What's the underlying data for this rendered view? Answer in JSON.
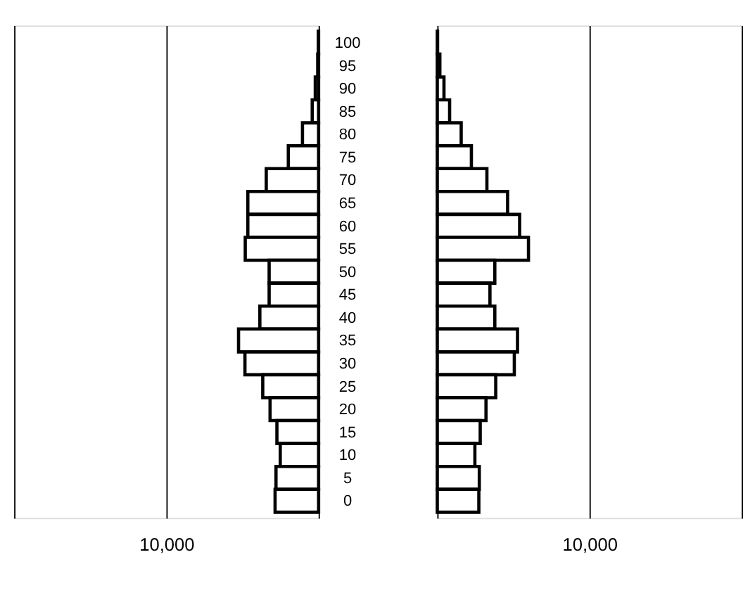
{
  "chart_data": [
    {
      "type": "bar",
      "orientation": "horizontal",
      "categories": [
        "100",
        "95",
        "90",
        "85",
        "80",
        "75",
        "70",
        "65",
        "60",
        "55",
        "50",
        "45",
        "40",
        "35",
        "30",
        "25",
        "20",
        "15",
        "10",
        "5",
        "0"
      ],
      "values": [
        20,
        60,
        220,
        420,
        1060,
        1990,
        3440,
        4650,
        4650,
        4820,
        3250,
        3250,
        3860,
        5260,
        4840,
        3670,
        3190,
        2740,
        2520,
        2800,
        2860
      ],
      "color": "#ffffff",
      "xlim": [
        20000,
        0
      ],
      "xticks": [
        {
          "value": 20000,
          "label": null
        },
        {
          "value": 10000,
          "label": "10,000"
        },
        {
          "value": 0,
          "label": null
        }
      ],
      "grid": "x"
    },
    {
      "type": "bar",
      "orientation": "horizontal",
      "categories": [
        "100",
        "95",
        "90",
        "85",
        "80",
        "75",
        "70",
        "65",
        "60",
        "55",
        "50",
        "45",
        "40",
        "35",
        "30",
        "25",
        "20",
        "15",
        "10",
        "5",
        "0"
      ],
      "values": [
        20,
        170,
        440,
        810,
        1570,
        2240,
        3260,
        4620,
        5410,
        5990,
        3780,
        3460,
        3780,
        5270,
        5060,
        3840,
        3200,
        2820,
        2470,
        2760,
        2730
      ],
      "color": "#ffffff",
      "xlim": [
        0,
        20000
      ],
      "xticks": [
        {
          "value": 0,
          "label": null
        },
        {
          "value": 10000,
          "label": "10,000"
        },
        {
          "value": 20000,
          "label": null
        }
      ],
      "grid": "x",
      "tick_labels": "x"
    }
  ]
}
